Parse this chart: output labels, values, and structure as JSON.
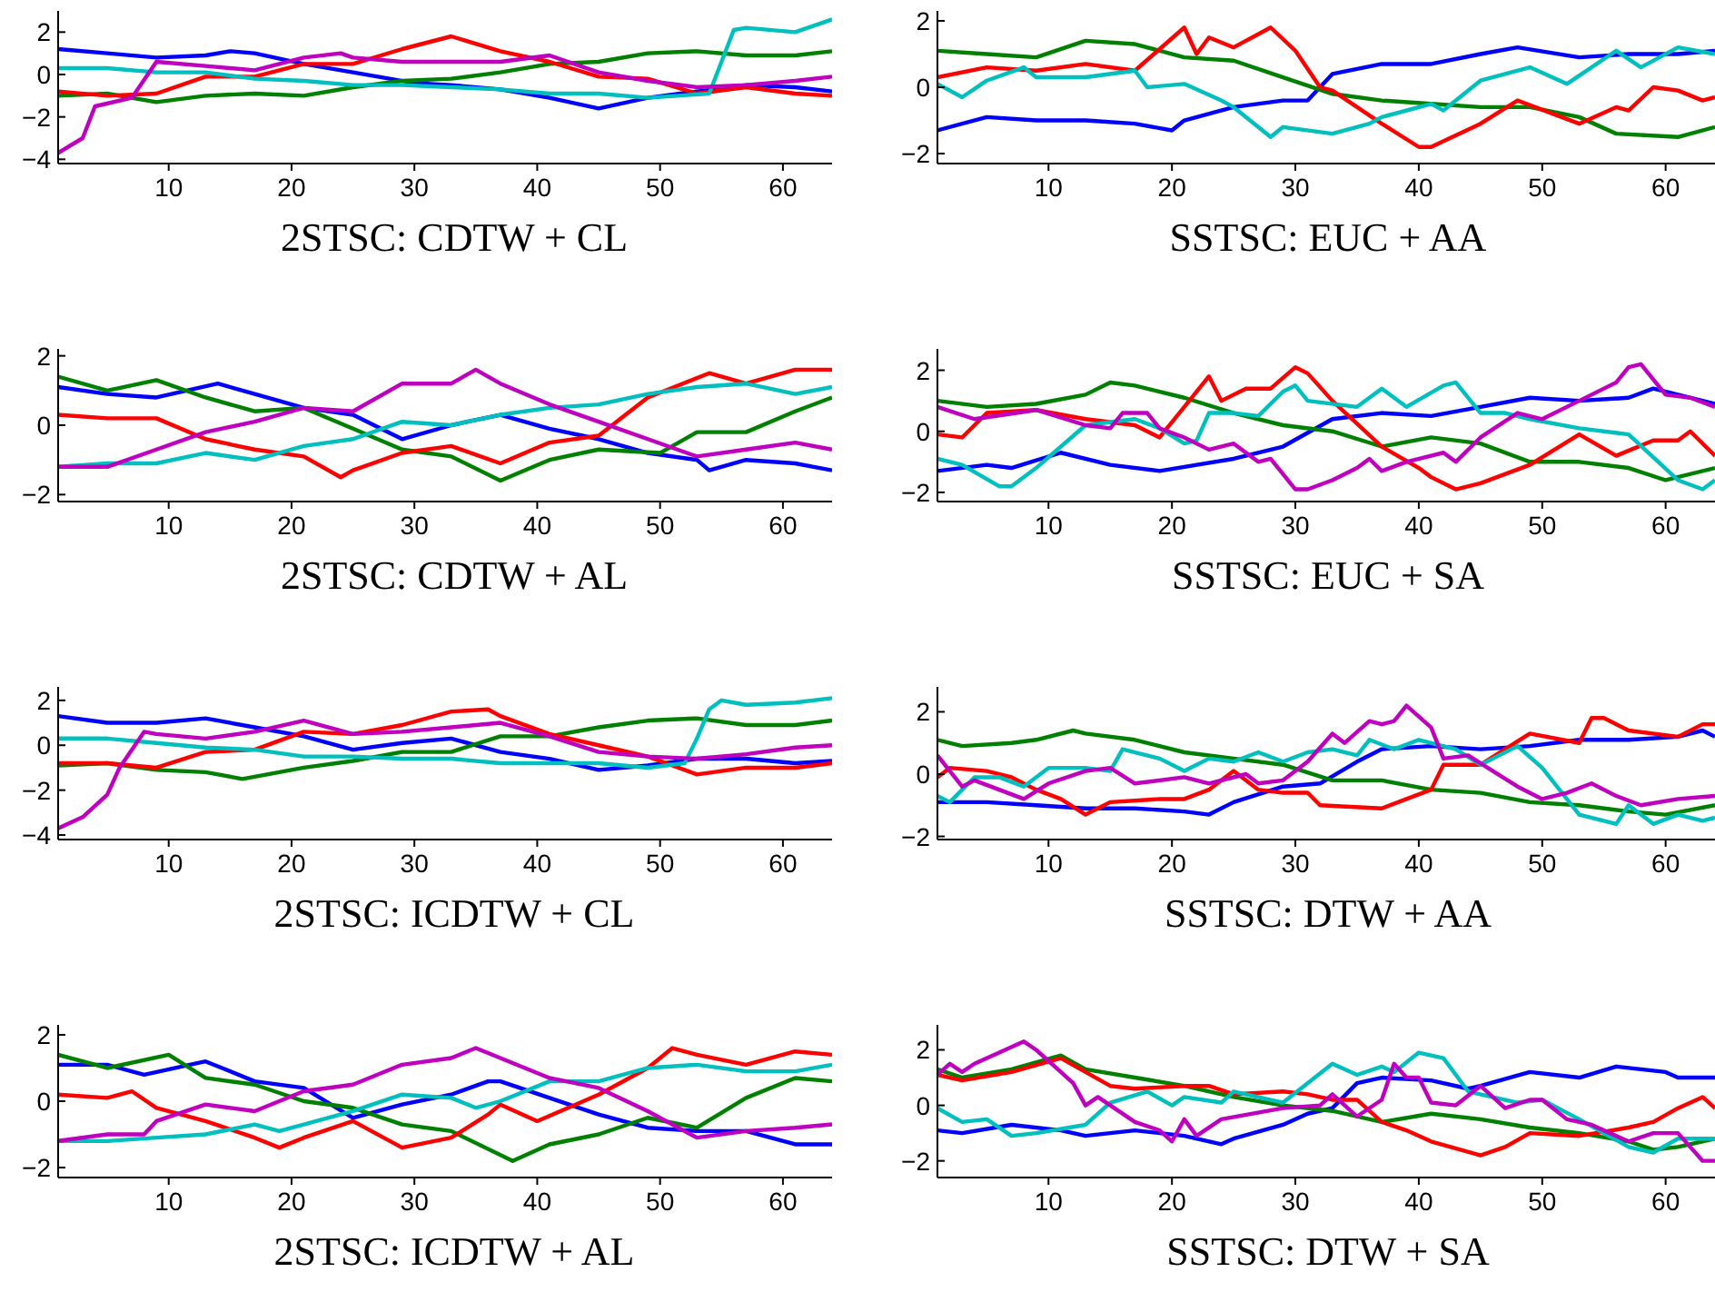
{
  "chart_data": [
    {
      "type": "line",
      "title": "2STSC: CDTW + CL",
      "xlim": [
        1,
        64
      ],
      "xticks": [
        10,
        20,
        30,
        40,
        50,
        60
      ],
      "ylim": [
        -4.2,
        3
      ],
      "yticks": [
        -4,
        -2,
        0,
        2
      ],
      "grid": false,
      "series": [
        {
          "color": "#0000ff",
          "x": [
            1,
            5,
            9,
            13,
            15,
            17,
            21,
            25,
            30,
            33,
            37,
            41,
            45,
            49,
            53,
            57,
            61,
            64
          ],
          "values": [
            1.2,
            1.0,
            0.8,
            0.9,
            1.1,
            1.0,
            0.5,
            0.1,
            -0.4,
            -0.5,
            -0.7,
            -1.1,
            -1.6,
            -1.1,
            -0.8,
            -0.5,
            -0.6,
            -0.8
          ]
        },
        {
          "color": "#008000",
          "x": [
            1,
            5,
            9,
            13,
            17,
            21,
            25,
            29,
            33,
            37,
            41,
            45,
            49,
            53,
            57,
            61,
            64
          ],
          "values": [
            -1.0,
            -0.9,
            -1.3,
            -1.0,
            -0.9,
            -1.0,
            -0.6,
            -0.3,
            -0.2,
            0.1,
            0.5,
            0.6,
            1.0,
            1.1,
            0.9,
            0.9,
            1.1
          ]
        },
        {
          "color": "#ff0000",
          "x": [
            1,
            5,
            9,
            13,
            17,
            21,
            25,
            29,
            33,
            37,
            41,
            45,
            49,
            53,
            57,
            61,
            64
          ],
          "values": [
            -0.8,
            -1.0,
            -0.9,
            -0.1,
            -0.1,
            0.5,
            0.5,
            1.2,
            1.8,
            1.1,
            0.6,
            -0.1,
            -0.2,
            -0.9,
            -0.6,
            -0.9,
            -1.0
          ]
        },
        {
          "color": "#00bfbf",
          "x": [
            1,
            5,
            9,
            13,
            17,
            21,
            25,
            29,
            33,
            37,
            41,
            45,
            49,
            54,
            56,
            57,
            61,
            64
          ],
          "values": [
            0.3,
            0.3,
            0.1,
            0.1,
            -0.2,
            -0.3,
            -0.5,
            -0.5,
            -0.6,
            -0.7,
            -0.9,
            -0.9,
            -1.1,
            -0.9,
            2.1,
            2.2,
            2.0,
            2.6
          ]
        },
        {
          "color": "#bf00bf",
          "x": [
            1,
            3,
            4,
            7,
            9,
            13,
            17,
            21,
            24,
            25,
            29,
            33,
            37,
            41,
            45,
            49,
            53,
            57,
            61,
            64
          ],
          "values": [
            -3.7,
            -3.0,
            -1.5,
            -1.1,
            0.6,
            0.4,
            0.2,
            0.8,
            1.0,
            0.8,
            0.6,
            0.6,
            0.6,
            0.9,
            0.1,
            -0.3,
            -0.6,
            -0.5,
            -0.3,
            -0.1
          ]
        }
      ]
    },
    {
      "type": "line",
      "title": "SSTSC: EUC + AA",
      "xlim": [
        1,
        64
      ],
      "xticks": [
        10,
        20,
        30,
        40,
        50,
        60
      ],
      "ylim": [
        -2.3,
        2.3
      ],
      "yticks": [
        -2,
        0,
        2
      ],
      "grid": false,
      "series": [
        {
          "color": "#0000ff",
          "x": [
            1,
            5,
            9,
            13,
            17,
            20,
            21,
            25,
            29,
            31,
            33,
            37,
            41,
            45,
            48,
            53,
            57,
            61,
            64
          ],
          "values": [
            -1.3,
            -0.9,
            -1.0,
            -1.0,
            -1.1,
            -1.3,
            -1.0,
            -0.6,
            -0.4,
            -0.4,
            0.4,
            0.7,
            0.7,
            1.0,
            1.2,
            0.9,
            1.0,
            1.0,
            1.1
          ]
        },
        {
          "color": "#008000",
          "x": [
            1,
            5,
            9,
            13,
            17,
            21,
            25,
            29,
            33,
            37,
            41,
            45,
            49,
            53,
            56,
            61,
            64
          ],
          "values": [
            1.1,
            1.0,
            0.9,
            1.4,
            1.3,
            0.9,
            0.8,
            0.3,
            -0.2,
            -0.4,
            -0.5,
            -0.6,
            -0.6,
            -0.9,
            -1.4,
            -1.5,
            -1.2
          ]
        },
        {
          "color": "#ff0000",
          "x": [
            1,
            5,
            9,
            13,
            17,
            21,
            22,
            23,
            25,
            28,
            30,
            32,
            33,
            37,
            40,
            41,
            45,
            48,
            53,
            56,
            57,
            59,
            61,
            63,
            64
          ],
          "values": [
            0.3,
            0.6,
            0.5,
            0.7,
            0.5,
            1.8,
            1.0,
            1.5,
            1.2,
            1.8,
            1.1,
            0.0,
            -0.1,
            -1.1,
            -1.8,
            -1.8,
            -1.1,
            -0.4,
            -1.1,
            -0.6,
            -0.7,
            0.0,
            -0.1,
            -0.4,
            -0.3
          ]
        },
        {
          "color": "#00bfbf",
          "x": [
            1,
            3,
            5,
            8,
            9,
            13,
            17,
            18,
            21,
            24,
            25,
            28,
            29,
            33,
            36,
            37,
            41,
            42,
            45,
            49,
            52,
            56,
            58,
            61,
            64
          ],
          "values": [
            0.1,
            -0.3,
            0.2,
            0.6,
            0.3,
            0.3,
            0.5,
            0.0,
            0.1,
            -0.4,
            -0.6,
            -1.5,
            -1.2,
            -1.4,
            -1.1,
            -0.9,
            -0.5,
            -0.7,
            0.2,
            0.6,
            0.1,
            1.1,
            0.6,
            1.2,
            1.0
          ]
        }
      ]
    },
    {
      "type": "line",
      "title": "2STSC: CDTW + AL",
      "xlim": [
        1,
        64
      ],
      "xticks": [
        10,
        20,
        30,
        40,
        50,
        60
      ],
      "ylim": [
        -2.2,
        2.2
      ],
      "yticks": [
        -2,
        0,
        2
      ],
      "grid": false,
      "series": [
        {
          "color": "#0000ff",
          "x": [
            1,
            5,
            9,
            14,
            17,
            21,
            25,
            29,
            33,
            37,
            41,
            45,
            49,
            53,
            54,
            57,
            61,
            64
          ],
          "values": [
            1.1,
            0.9,
            0.8,
            1.2,
            0.9,
            0.5,
            0.3,
            -0.4,
            0.0,
            0.3,
            -0.1,
            -0.4,
            -0.8,
            -1.0,
            -1.3,
            -1.0,
            -1.1,
            -1.3
          ]
        },
        {
          "color": "#008000",
          "x": [
            1,
            5,
            9,
            13,
            17,
            21,
            25,
            29,
            33,
            37,
            41,
            45,
            50,
            53,
            57,
            61,
            64
          ],
          "values": [
            1.4,
            1.0,
            1.3,
            0.8,
            0.4,
            0.5,
            -0.1,
            -0.7,
            -0.9,
            -1.6,
            -1.0,
            -0.7,
            -0.8,
            -0.2,
            -0.2,
            0.4,
            0.8
          ]
        },
        {
          "color": "#ff0000",
          "x": [
            1,
            5,
            9,
            13,
            17,
            21,
            24,
            25,
            29,
            33,
            37,
            41,
            45,
            49,
            54,
            57,
            61,
            64
          ],
          "values": [
            0.3,
            0.2,
            0.2,
            -0.4,
            -0.7,
            -0.9,
            -1.5,
            -1.3,
            -0.8,
            -0.6,
            -1.1,
            -0.5,
            -0.3,
            0.8,
            1.5,
            1.2,
            1.6,
            1.6
          ]
        },
        {
          "color": "#00bfbf",
          "x": [
            1,
            5,
            9,
            13,
            17,
            21,
            25,
            29,
            33,
            37,
            41,
            45,
            49,
            53,
            57,
            61,
            64
          ],
          "values": [
            -1.2,
            -1.1,
            -1.1,
            -0.8,
            -1.0,
            -0.6,
            -0.4,
            0.1,
            0.0,
            0.3,
            0.5,
            0.6,
            0.9,
            1.1,
            1.2,
            0.9,
            1.1
          ]
        },
        {
          "color": "#bf00bf",
          "x": [
            1,
            5,
            9,
            13,
            17,
            21,
            25,
            29,
            33,
            35,
            37,
            41,
            45,
            49,
            53,
            57,
            61,
            64
          ],
          "values": [
            -1.2,
            -1.2,
            -0.7,
            -0.2,
            0.1,
            0.5,
            0.4,
            1.2,
            1.2,
            1.6,
            1.2,
            0.6,
            0.1,
            -0.4,
            -0.9,
            -0.7,
            -0.5,
            -0.7
          ]
        }
      ]
    },
    {
      "type": "line",
      "title": "SSTSC: EUC + SA",
      "xlim": [
        1,
        64
      ],
      "xticks": [
        10,
        20,
        30,
        40,
        50,
        60
      ],
      "ylim": [
        -2.3,
        2.7
      ],
      "yticks": [
        -2,
        0,
        2
      ],
      "grid": false,
      "series": [
        {
          "color": "#0000ff",
          "x": [
            1,
            5,
            7,
            11,
            15,
            19,
            25,
            29,
            33,
            37,
            41,
            45,
            49,
            53,
            57,
            59,
            61,
            64
          ],
          "values": [
            -1.3,
            -1.1,
            -1.2,
            -0.7,
            -1.1,
            -1.3,
            -0.9,
            -0.5,
            0.4,
            0.6,
            0.5,
            0.8,
            1.1,
            1.0,
            1.1,
            1.4,
            1.2,
            0.9
          ]
        },
        {
          "color": "#008000",
          "x": [
            1,
            5,
            9,
            13,
            15,
            17,
            21,
            25,
            29,
            33,
            37,
            41,
            45,
            49,
            53,
            57,
            60,
            64
          ],
          "values": [
            1.0,
            0.8,
            0.9,
            1.2,
            1.6,
            1.5,
            1.1,
            0.6,
            0.2,
            0.0,
            -0.5,
            -0.2,
            -0.4,
            -1.0,
            -1.0,
            -1.2,
            -1.6,
            -1.2
          ]
        },
        {
          "color": "#ff0000",
          "x": [
            1,
            3,
            5,
            9,
            13,
            17,
            19,
            21,
            23,
            24,
            26,
            28,
            30,
            31,
            33,
            37,
            40,
            41,
            43,
            45,
            49,
            53,
            56,
            59,
            61,
            62,
            64
          ],
          "values": [
            -0.1,
            -0.2,
            0.6,
            0.7,
            0.4,
            0.2,
            -0.2,
            0.8,
            1.8,
            1.0,
            1.4,
            1.4,
            2.1,
            1.9,
            1.0,
            -0.5,
            -1.2,
            -1.5,
            -1.9,
            -1.7,
            -1.1,
            -0.1,
            -0.8,
            -0.3,
            -0.3,
            0.0,
            -0.8
          ]
        },
        {
          "color": "#00bfbf",
          "x": [
            1,
            3,
            6,
            7,
            9,
            13,
            17,
            19,
            21,
            22,
            23,
            25,
            27,
            29,
            30,
            31,
            35,
            37,
            39,
            42,
            43,
            45,
            47,
            49,
            53,
            57,
            61,
            63,
            64
          ],
          "values": [
            -0.9,
            -1.1,
            -1.8,
            -1.8,
            -1.2,
            0.2,
            0.4,
            0.1,
            -0.4,
            -0.3,
            0.6,
            0.6,
            0.5,
            1.3,
            1.5,
            1.0,
            0.8,
            1.4,
            0.8,
            1.5,
            1.6,
            0.6,
            0.6,
            0.4,
            0.1,
            -0.1,
            -1.6,
            -1.9,
            -1.6
          ]
        },
        {
          "color": "#bf00bf",
          "x": [
            1,
            4,
            9,
            13,
            15,
            16,
            18,
            19,
            21,
            23,
            25,
            27,
            28,
            30,
            31,
            33,
            35,
            36,
            37,
            39,
            41,
            42,
            43,
            45,
            48,
            50,
            53,
            56,
            57,
            58,
            60,
            62,
            64
          ],
          "values": [
            0.8,
            0.4,
            0.7,
            0.2,
            0.1,
            0.6,
            0.6,
            0.1,
            -0.2,
            -0.6,
            -0.4,
            -1.0,
            -0.9,
            -1.9,
            -1.9,
            -1.6,
            -1.2,
            -0.9,
            -1.3,
            -1.0,
            -0.8,
            -0.7,
            -1.0,
            -0.2,
            0.6,
            0.4,
            1.0,
            1.6,
            2.1,
            2.2,
            1.2,
            1.1,
            0.8
          ]
        }
      ]
    },
    {
      "type": "line",
      "title": "2STSC: ICDTW + CL",
      "xlim": [
        1,
        64
      ],
      "xticks": [
        10,
        20,
        30,
        40,
        50,
        60
      ],
      "ylim": [
        -4.2,
        2.6
      ],
      "yticks": [
        -4,
        -2,
        0,
        2
      ],
      "grid": false,
      "series": [
        {
          "color": "#0000ff",
          "x": [
            1,
            5,
            9,
            13,
            17,
            21,
            25,
            29,
            33,
            37,
            41,
            45,
            49,
            53,
            57,
            61,
            64
          ],
          "values": [
            1.3,
            1.0,
            1.0,
            1.2,
            0.8,
            0.4,
            -0.2,
            0.1,
            0.3,
            -0.3,
            -0.6,
            -1.1,
            -0.9,
            -0.6,
            -0.6,
            -0.8,
            -0.7
          ]
        },
        {
          "color": "#008000",
          "x": [
            1,
            5,
            9,
            13,
            16,
            17,
            21,
            25,
            29,
            33,
            37,
            41,
            45,
            49,
            53,
            57,
            61,
            64
          ],
          "values": [
            -0.9,
            -0.8,
            -1.1,
            -1.2,
            -1.5,
            -1.4,
            -1.0,
            -0.7,
            -0.3,
            -0.3,
            0.4,
            0.4,
            0.8,
            1.1,
            1.2,
            0.9,
            0.9,
            1.1
          ]
        },
        {
          "color": "#ff0000",
          "x": [
            1,
            5,
            9,
            13,
            17,
            21,
            25,
            29,
            33,
            36,
            37,
            41,
            45,
            49,
            53,
            57,
            61,
            64
          ],
          "values": [
            -0.8,
            -0.8,
            -1.0,
            -0.3,
            -0.2,
            0.6,
            0.5,
            0.9,
            1.5,
            1.6,
            1.3,
            0.5,
            0.0,
            -0.5,
            -1.3,
            -1.0,
            -1.0,
            -0.8
          ]
        },
        {
          "color": "#00bfbf",
          "x": [
            1,
            5,
            9,
            13,
            17,
            21,
            25,
            29,
            33,
            37,
            41,
            45,
            49,
            52,
            53,
            54,
            55,
            57,
            61,
            64
          ],
          "values": [
            0.3,
            0.3,
            0.1,
            -0.1,
            -0.2,
            -0.5,
            -0.5,
            -0.6,
            -0.6,
            -0.8,
            -0.8,
            -0.8,
            -1.0,
            -0.8,
            0.3,
            1.6,
            2.0,
            1.8,
            1.9,
            2.1
          ]
        },
        {
          "color": "#bf00bf",
          "x": [
            1,
            3,
            5,
            6,
            8,
            9,
            13,
            17,
            21,
            25,
            29,
            33,
            37,
            41,
            45,
            49,
            53,
            57,
            61,
            64
          ],
          "values": [
            -3.7,
            -3.2,
            -2.2,
            -1.0,
            0.6,
            0.5,
            0.3,
            0.6,
            1.1,
            0.5,
            0.6,
            0.8,
            1.0,
            0.4,
            -0.3,
            -0.5,
            -0.6,
            -0.4,
            -0.1,
            0.0
          ]
        }
      ]
    },
    {
      "type": "line",
      "title": "SSTSC: DTW + AA",
      "xlim": [
        1,
        64
      ],
      "xticks": [
        10,
        20,
        30,
        40,
        50,
        60
      ],
      "ylim": [
        -2.1,
        2.8
      ],
      "yticks": [
        -2,
        0,
        2
      ],
      "grid": false,
      "series": [
        {
          "color": "#0000ff",
          "x": [
            1,
            5,
            9,
            13,
            17,
            21,
            23,
            25,
            29,
            32,
            35,
            37,
            41,
            45,
            49,
            53,
            57,
            61,
            63,
            64
          ],
          "values": [
            -0.9,
            -0.9,
            -1.0,
            -1.1,
            -1.1,
            -1.2,
            -1.3,
            -0.9,
            -0.4,
            -0.3,
            0.4,
            0.8,
            0.9,
            0.8,
            0.9,
            1.1,
            1.1,
            1.2,
            1.4,
            1.2
          ]
        },
        {
          "color": "#008000",
          "x": [
            1,
            3,
            7,
            9,
            12,
            13,
            17,
            21,
            25,
            29,
            33,
            37,
            41,
            45,
            49,
            53,
            57,
            60,
            64
          ],
          "values": [
            1.1,
            0.9,
            1.0,
            1.1,
            1.4,
            1.3,
            1.1,
            0.7,
            0.5,
            0.3,
            -0.2,
            -0.2,
            -0.5,
            -0.6,
            -0.9,
            -1.0,
            -1.2,
            -1.3,
            -1.0
          ]
        },
        {
          "color": "#ff0000",
          "x": [
            1,
            2,
            5,
            7,
            9,
            11,
            13,
            15,
            19,
            21,
            23,
            25,
            27,
            29,
            31,
            32,
            37,
            41,
            42,
            45,
            49,
            53,
            54,
            55,
            57,
            61,
            63,
            64
          ],
          "values": [
            -0.1,
            0.2,
            0.1,
            -0.1,
            -0.5,
            -0.8,
            -1.3,
            -0.9,
            -0.8,
            -0.8,
            -0.5,
            0.1,
            -0.5,
            -0.6,
            -0.6,
            -1.0,
            -1.1,
            -0.5,
            0.3,
            0.3,
            1.3,
            1.0,
            1.8,
            1.8,
            1.4,
            1.2,
            1.6,
            1.6
          ]
        },
        {
          "color": "#00bfbf",
          "x": [
            1,
            2,
            4,
            6,
            8,
            10,
            13,
            15,
            16,
            19,
            21,
            23,
            25,
            27,
            29,
            31,
            33,
            35,
            36,
            38,
            40,
            43,
            45,
            48,
            50,
            53,
            56,
            57,
            59,
            61,
            63,
            64
          ],
          "values": [
            -0.7,
            -0.9,
            -0.1,
            -0.1,
            -0.4,
            0.2,
            0.2,
            0.1,
            0.8,
            0.5,
            0.1,
            0.5,
            0.4,
            0.7,
            0.4,
            0.7,
            0.8,
            0.6,
            1.1,
            0.8,
            1.1,
            0.8,
            0.3,
            0.9,
            0.2,
            -1.3,
            -1.6,
            -1.0,
            -1.6,
            -1.3,
            -1.5,
            -1.4
          ]
        },
        {
          "color": "#bf00bf",
          "x": [
            1,
            3,
            4,
            8,
            10,
            13,
            15,
            17,
            21,
            23,
            26,
            27,
            29,
            31,
            33,
            34,
            36,
            37,
            38,
            39,
            41,
            42,
            44,
            46,
            48,
            50,
            52,
            54,
            56,
            58,
            61,
            64
          ],
          "values": [
            0.6,
            -0.4,
            -0.2,
            -0.8,
            -0.3,
            0.1,
            0.2,
            -0.3,
            -0.1,
            -0.3,
            0.0,
            -0.3,
            -0.2,
            0.4,
            1.3,
            1.0,
            1.7,
            1.6,
            1.7,
            2.2,
            1.5,
            0.5,
            0.6,
            0.1,
            -0.4,
            -0.8,
            -0.6,
            -0.3,
            -0.7,
            -1.0,
            -0.8,
            -0.7
          ]
        }
      ]
    },
    {
      "type": "line",
      "title": "2STSC: ICDTW + AL",
      "xlim": [
        1,
        64
      ],
      "xticks": [
        10,
        20,
        30,
        40,
        50,
        60
      ],
      "ylim": [
        -2.3,
        2.3
      ],
      "yticks": [
        -2,
        0,
        2
      ],
      "grid": false,
      "series": [
        {
          "color": "#0000ff",
          "x": [
            1,
            5,
            8,
            13,
            17,
            21,
            25,
            29,
            33,
            36,
            37,
            41,
            45,
            49,
            53,
            57,
            61,
            64
          ],
          "values": [
            1.1,
            1.1,
            0.8,
            1.2,
            0.6,
            0.4,
            -0.5,
            -0.1,
            0.2,
            0.6,
            0.6,
            0.1,
            -0.4,
            -0.8,
            -0.9,
            -0.9,
            -1.3,
            -1.3
          ]
        },
        {
          "color": "#008000",
          "x": [
            1,
            5,
            10,
            13,
            17,
            21,
            25,
            29,
            33,
            38,
            41,
            45,
            49,
            53,
            57,
            61,
            64
          ],
          "values": [
            1.4,
            1.0,
            1.4,
            0.7,
            0.5,
            0.0,
            -0.2,
            -0.7,
            -0.9,
            -1.8,
            -1.3,
            -1.0,
            -0.5,
            -0.8,
            0.1,
            0.7,
            0.6
          ]
        },
        {
          "color": "#ff0000",
          "x": [
            1,
            5,
            7,
            9,
            13,
            17,
            19,
            21,
            25,
            29,
            33,
            36,
            37,
            40,
            45,
            49,
            51,
            53,
            57,
            61,
            64
          ],
          "values": [
            0.2,
            0.1,
            0.3,
            -0.2,
            -0.6,
            -1.1,
            -1.4,
            -1.1,
            -0.6,
            -1.4,
            -1.1,
            -0.4,
            -0.1,
            -0.6,
            0.2,
            1.0,
            1.6,
            1.4,
            1.1,
            1.5,
            1.4
          ]
        },
        {
          "color": "#00bfbf",
          "x": [
            1,
            5,
            9,
            13,
            17,
            19,
            21,
            25,
            29,
            33,
            35,
            37,
            41,
            45,
            49,
            53,
            57,
            61,
            64
          ],
          "values": [
            -1.2,
            -1.2,
            -1.1,
            -1.0,
            -0.7,
            -0.9,
            -0.7,
            -0.3,
            0.2,
            0.1,
            -0.2,
            0.0,
            0.6,
            0.6,
            1.0,
            1.1,
            0.9,
            0.9,
            1.1
          ]
        },
        {
          "color": "#bf00bf",
          "x": [
            1,
            5,
            8,
            9,
            13,
            17,
            21,
            25,
            29,
            33,
            35,
            37,
            41,
            45,
            49,
            53,
            57,
            61,
            64
          ],
          "values": [
            -1.2,
            -1.0,
            -1.0,
            -0.6,
            -0.1,
            -0.3,
            0.3,
            0.5,
            1.1,
            1.3,
            1.6,
            1.3,
            0.7,
            0.4,
            -0.3,
            -1.1,
            -0.9,
            -0.8,
            -0.7
          ]
        }
      ]
    },
    {
      "type": "line",
      "title": "SSTSC: DTW + SA",
      "xlim": [
        1,
        64
      ],
      "xticks": [
        10,
        20,
        30,
        40,
        50,
        60
      ],
      "ylim": [
        -2.6,
        2.9
      ],
      "yticks": [
        -2,
        0,
        2
      ],
      "grid": false,
      "series": [
        {
          "color": "#0000ff",
          "x": [
            1,
            3,
            7,
            11,
            13,
            17,
            21,
            24,
            25,
            29,
            31,
            33,
            35,
            37,
            41,
            44,
            45,
            49,
            53,
            56,
            60,
            61,
            64
          ],
          "values": [
            -0.9,
            -1.0,
            -0.7,
            -0.9,
            -1.1,
            -0.9,
            -1.1,
            -1.4,
            -1.2,
            -0.7,
            -0.3,
            -0.1,
            0.8,
            1.0,
            0.9,
            0.6,
            0.7,
            1.2,
            1.0,
            1.4,
            1.2,
            1.0,
            1.0
          ]
        },
        {
          "color": "#008000",
          "x": [
            1,
            3,
            7,
            11,
            13,
            17,
            21,
            25,
            29,
            33,
            37,
            41,
            45,
            49,
            53,
            57,
            59,
            61,
            64
          ],
          "values": [
            1.3,
            1.0,
            1.3,
            1.8,
            1.3,
            1.0,
            0.7,
            0.3,
            0.0,
            -0.2,
            -0.6,
            -0.3,
            -0.5,
            -0.8,
            -1.0,
            -1.3,
            -1.6,
            -1.5,
            -1.2
          ]
        },
        {
          "color": "#ff0000",
          "x": [
            1,
            3,
            7,
            11,
            13,
            15,
            17,
            21,
            23,
            25,
            29,
            31,
            33,
            35,
            37,
            39,
            41,
            45,
            47,
            49,
            53,
            57,
            59,
            61,
            63,
            64
          ],
          "values": [
            1.1,
            0.9,
            1.2,
            1.7,
            1.2,
            0.7,
            0.6,
            0.7,
            0.7,
            0.4,
            0.5,
            0.4,
            0.2,
            0.2,
            -0.6,
            -0.9,
            -1.3,
            -1.8,
            -1.5,
            -1.0,
            -1.1,
            -0.8,
            -0.6,
            -0.1,
            0.3,
            -0.1
          ]
        },
        {
          "color": "#00bfbf",
          "x": [
            1,
            3,
            5,
            7,
            9,
            13,
            15,
            18,
            20,
            21,
            24,
            25,
            29,
            33,
            35,
            37,
            38,
            40,
            42,
            44,
            48,
            50,
            53,
            57,
            59,
            61,
            64
          ],
          "values": [
            -0.1,
            -0.6,
            -0.5,
            -1.1,
            -1.0,
            -0.7,
            0.1,
            0.5,
            0.0,
            0.3,
            0.1,
            0.5,
            0.1,
            1.5,
            1.1,
            1.4,
            1.2,
            1.9,
            1.7,
            0.5,
            0.1,
            0.2,
            -0.5,
            -1.5,
            -1.7,
            -1.2,
            -1.2
          ]
        },
        {
          "color": "#bf00bf",
          "x": [
            1,
            2,
            3,
            4,
            6,
            8,
            9,
            11,
            12,
            13,
            14,
            17,
            19,
            20,
            21,
            22,
            24,
            29,
            32,
            33,
            35,
            37,
            38,
            39,
            40,
            41,
            43,
            45,
            47,
            49,
            50,
            52,
            54,
            57,
            59,
            61,
            63,
            64
          ],
          "values": [
            1.1,
            1.5,
            1.2,
            1.5,
            1.9,
            2.3,
            2.0,
            1.2,
            0.8,
            0.0,
            0.3,
            -0.6,
            -0.9,
            -1.3,
            -0.5,
            -1.1,
            -0.5,
            -0.1,
            0.0,
            0.4,
            -0.4,
            0.2,
            1.5,
            1.0,
            1.0,
            0.1,
            0.0,
            0.7,
            -0.1,
            0.2,
            0.2,
            -0.5,
            -0.7,
            -1.3,
            -1.0,
            -1.0,
            -2.0,
            -2.0
          ]
        }
      ]
    }
  ]
}
